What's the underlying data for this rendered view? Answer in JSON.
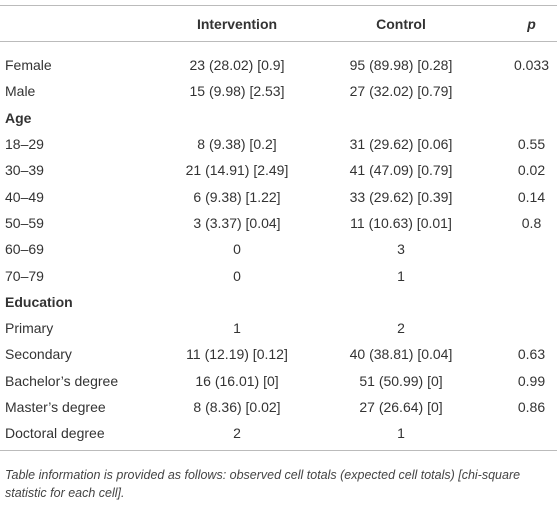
{
  "table": {
    "columns": [
      "Intervention",
      "Control",
      "p"
    ],
    "rows": [
      {
        "label": "Female",
        "cells": [
          "23 (28.02) [0.9]",
          "95 (89.98) [0.28]",
          "0.033"
        ]
      },
      {
        "label": "Male",
        "cells": [
          "15 (9.98) [2.53]",
          "27 (32.02) [0.79]"
        ]
      },
      {
        "label": "Age",
        "section": true
      },
      {
        "label": "18–29",
        "cells": [
          "8 (9.38) [0.2]",
          "31 (29.62) [0.06]",
          "0.55"
        ]
      },
      {
        "label": "30–39",
        "cells": [
          "21 (14.91) [2.49]",
          "41 (47.09) [0.79]",
          "0.02"
        ]
      },
      {
        "label": "40–49",
        "cells": [
          "6 (9.38) [1.22]",
          "33 (29.62) [0.39]",
          "0.14"
        ]
      },
      {
        "label": "50–59",
        "cells": [
          "3 (3.37) [0.04]",
          "11 (10.63) [0.01]",
          "0.8"
        ]
      },
      {
        "label": "60–69",
        "cells": [
          "0",
          "3"
        ]
      },
      {
        "label": "70–79",
        "cells": [
          "0",
          "1"
        ]
      },
      {
        "label": "Education",
        "section": true
      },
      {
        "label": "Primary",
        "cells": [
          "1",
          "2"
        ]
      },
      {
        "label": "Secondary",
        "cells": [
          "11 (12.19) [0.12]",
          "40 (38.81) [0.04]",
          "0.63"
        ]
      },
      {
        "label": "Bachelor’s degree",
        "cells": [
          "16 (16.01) [0]",
          "51 (50.99) [0]",
          "0.99"
        ]
      },
      {
        "label": "Master’s degree",
        "cells": [
          "8 (8.36) [0.02]",
          "27 (26.64) [0]",
          "0.86"
        ]
      },
      {
        "label": "Doctoral degree",
        "cells": [
          "2",
          "1"
        ]
      }
    ],
    "footnote": "Table information is provided as follows: observed cell totals (expected cell totals) [chi-square statistic for each cell]."
  }
}
